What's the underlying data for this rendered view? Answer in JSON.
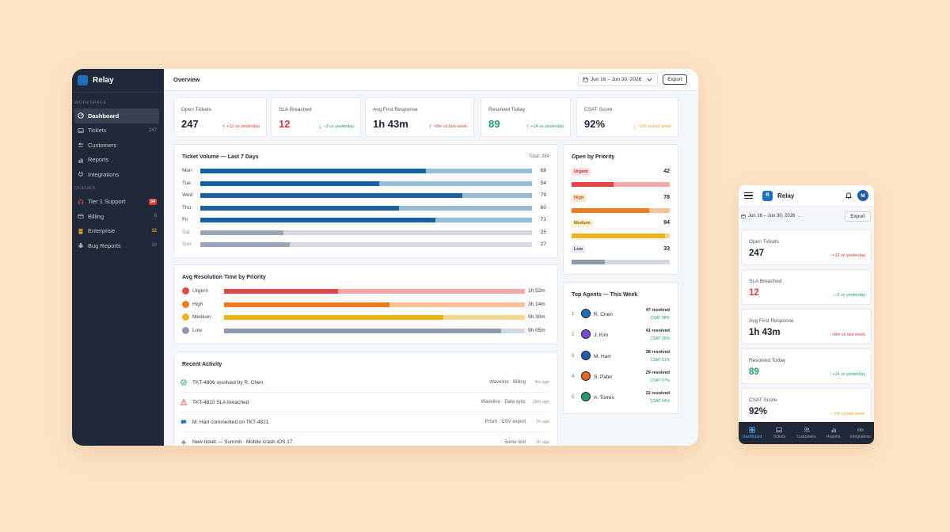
{
  "app": {
    "name": "Relay",
    "page_title": "Overview",
    "date_range": "Jun 16 – Jun 30, 2026",
    "export_label": "Export"
  },
  "sidebar": {
    "workspace_label": "WORKSPACE",
    "items": [
      {
        "label": "Dashboard",
        "icon": "dashboard-icon",
        "count": ""
      },
      {
        "label": "Tickets",
        "icon": "inbox-icon",
        "count": "247"
      },
      {
        "label": "Customers",
        "icon": "users-icon",
        "count": ""
      },
      {
        "label": "Reports",
        "icon": "chart-icon",
        "count": ""
      },
      {
        "label": "Integrations",
        "icon": "plug-icon",
        "count": ""
      }
    ],
    "queues_label": "QUEUES",
    "queues": [
      {
        "label": "Tier 1 Support",
        "icon": "headset-icon",
        "count": "34"
      },
      {
        "label": "Billing",
        "icon": "card-icon",
        "count": "8"
      },
      {
        "label": "Enterprise",
        "icon": "building-icon",
        "count": "12"
      },
      {
        "label": "Bug Reports",
        "icon": "bug-icon",
        "count": "19"
      }
    ]
  },
  "kpis": [
    {
      "label": "Open Tickets",
      "value": "247",
      "delta": "+12 vs yesterday",
      "direction": "up",
      "color": "#d93a3a"
    },
    {
      "label": "SLA Breached",
      "value": "12",
      "delta": "−3 vs yesterday",
      "direction": "down",
      "color": "#1f9e63"
    },
    {
      "label": "Avg First Response",
      "value": "1h 43m",
      "delta": "+8m vs last week",
      "direction": "up",
      "color": "#d93a3a"
    },
    {
      "label": "Resolved Today",
      "value": "89",
      "delta": "+14 vs yesterday",
      "direction": "up",
      "color": "#1f9e63"
    },
    {
      "label": "CSAT Score",
      "value": "92%",
      "delta": "−1% vs last week",
      "direction": "down",
      "color": "#e3a21a"
    }
  ],
  "volume": {
    "title": "Ticket Volume — Last 7 Days",
    "total": "Total: 384",
    "max": 100,
    "rows": [
      {
        "day": "Mon",
        "value": 68,
        "label": "68",
        "weekend": false
      },
      {
        "day": "Tue",
        "value": 54,
        "label": "54",
        "weekend": false
      },
      {
        "day": "Wed",
        "value": 79,
        "label": "79",
        "weekend": false
      },
      {
        "day": "Thu",
        "value": 60,
        "label": "60",
        "weekend": false
      },
      {
        "day": "Fri",
        "value": 71,
        "label": "71",
        "weekend": false
      },
      {
        "day": "Sat",
        "value": 25,
        "label": "25",
        "weekend": true
      },
      {
        "day": "Sun",
        "value": 27,
        "label": "27",
        "weekend": true
      }
    ]
  },
  "resolution": {
    "title": "Avg Resolution Time by Priority",
    "rows": [
      {
        "label": "Urgent",
        "value": "1h 52m",
        "fraction": 0.38,
        "color": "#e04848",
        "light": "#f4a8a8"
      },
      {
        "label": "High",
        "value": "3h 14m",
        "fraction": 0.55,
        "color": "#f07a1f",
        "light": "#f8c296"
      },
      {
        "label": "Medium",
        "value": "5h 30m",
        "fraction": 0.73,
        "color": "#e8b41a",
        "light": "#f4d98c"
      },
      {
        "label": "Low",
        "value": "9h 05m",
        "fraction": 0.92,
        "color": "#8e9aab",
        "light": "#d2d8e0"
      }
    ]
  },
  "activity": {
    "title": "Recent Activity",
    "rows": [
      {
        "text": "TKT-4806 resolved by R. Chen",
        "meta": "Waveline · Billing",
        "time": "4m ago",
        "icon": "check-circle-icon"
      },
      {
        "text": "TKT-4810 SLA breached",
        "meta": "Waveline · Data sync",
        "time": "18m ago",
        "icon": "warning-icon"
      },
      {
        "text": "M. Hart commented on TKT-4821",
        "meta": "Prism · CSV export",
        "time": "1h ago",
        "icon": "comment-icon"
      },
      {
        "text": "New ticket — Summit · Mobile crash iOS 17",
        "meta": "Some text",
        "time": "2h ago",
        "icon": "plus-icon"
      }
    ]
  },
  "priority": {
    "title": "Open by Priority",
    "rows": [
      {
        "label": "Urgent",
        "count": "42",
        "fraction": 0.43,
        "color": "#e04848",
        "light": "#f4a8a8",
        "tag_bg": "#fde0e0",
        "tag_fg": "#c62828"
      },
      {
        "label": "High",
        "count": "78",
        "fraction": 0.79,
        "color": "#f07a1f",
        "light": "#f8c296",
        "tag_bg": "#fde6cf",
        "tag_fg": "#c45a0d"
      },
      {
        "label": "Medium",
        "count": "94",
        "fraction": 0.95,
        "color": "#e8b41a",
        "light": "#f4d98c",
        "tag_bg": "#fbf0c6",
        "tag_fg": "#8a6a08"
      },
      {
        "label": "Low",
        "count": "33",
        "fraction": 0.34,
        "color": "#8e9aab",
        "light": "#d2d8e0",
        "tag_bg": "#e6ebf1",
        "tag_fg": "#3c4556"
      }
    ]
  },
  "agents": {
    "title": "Top Agents — This Week",
    "rows": [
      {
        "rank": "1",
        "name": "R. Chen",
        "resolved": "47 resolved",
        "csat": "CSAT 98%",
        "color": "#1f6fbf"
      },
      {
        "rank": "2",
        "name": "J. Kim",
        "resolved": "41 resolved",
        "csat": "CSAT 95%",
        "color": "#7c4ddb"
      },
      {
        "rank": "3",
        "name": "M. Hart",
        "resolved": "38 resolved",
        "csat": "CSAT 91%",
        "color": "#1f5fa8"
      },
      {
        "rank": "4",
        "name": "S. Patel",
        "resolved": "29 resolved",
        "csat": "CSAT 97%",
        "color": "#e8691e"
      },
      {
        "rank": "5",
        "name": "A. Torres",
        "resolved": "22 resolved",
        "csat": "CSAT 94%",
        "color": "#2a9a6a"
      }
    ]
  },
  "mobile": {
    "brand": "Relay",
    "logo_letter": "R",
    "avatar_letter": "M",
    "date_range": "Jun 16 – Jun 30, 2026",
    "export_label": "Export",
    "tabs": [
      {
        "label": "Dashboard",
        "icon": "dashboard-icon"
      },
      {
        "label": "Tickets",
        "icon": "inbox-icon"
      },
      {
        "label": "Customers",
        "icon": "users-icon"
      },
      {
        "label": "Reports",
        "icon": "chart-icon"
      },
      {
        "label": "Integrations",
        "icon": "link-icon"
      }
    ]
  }
}
